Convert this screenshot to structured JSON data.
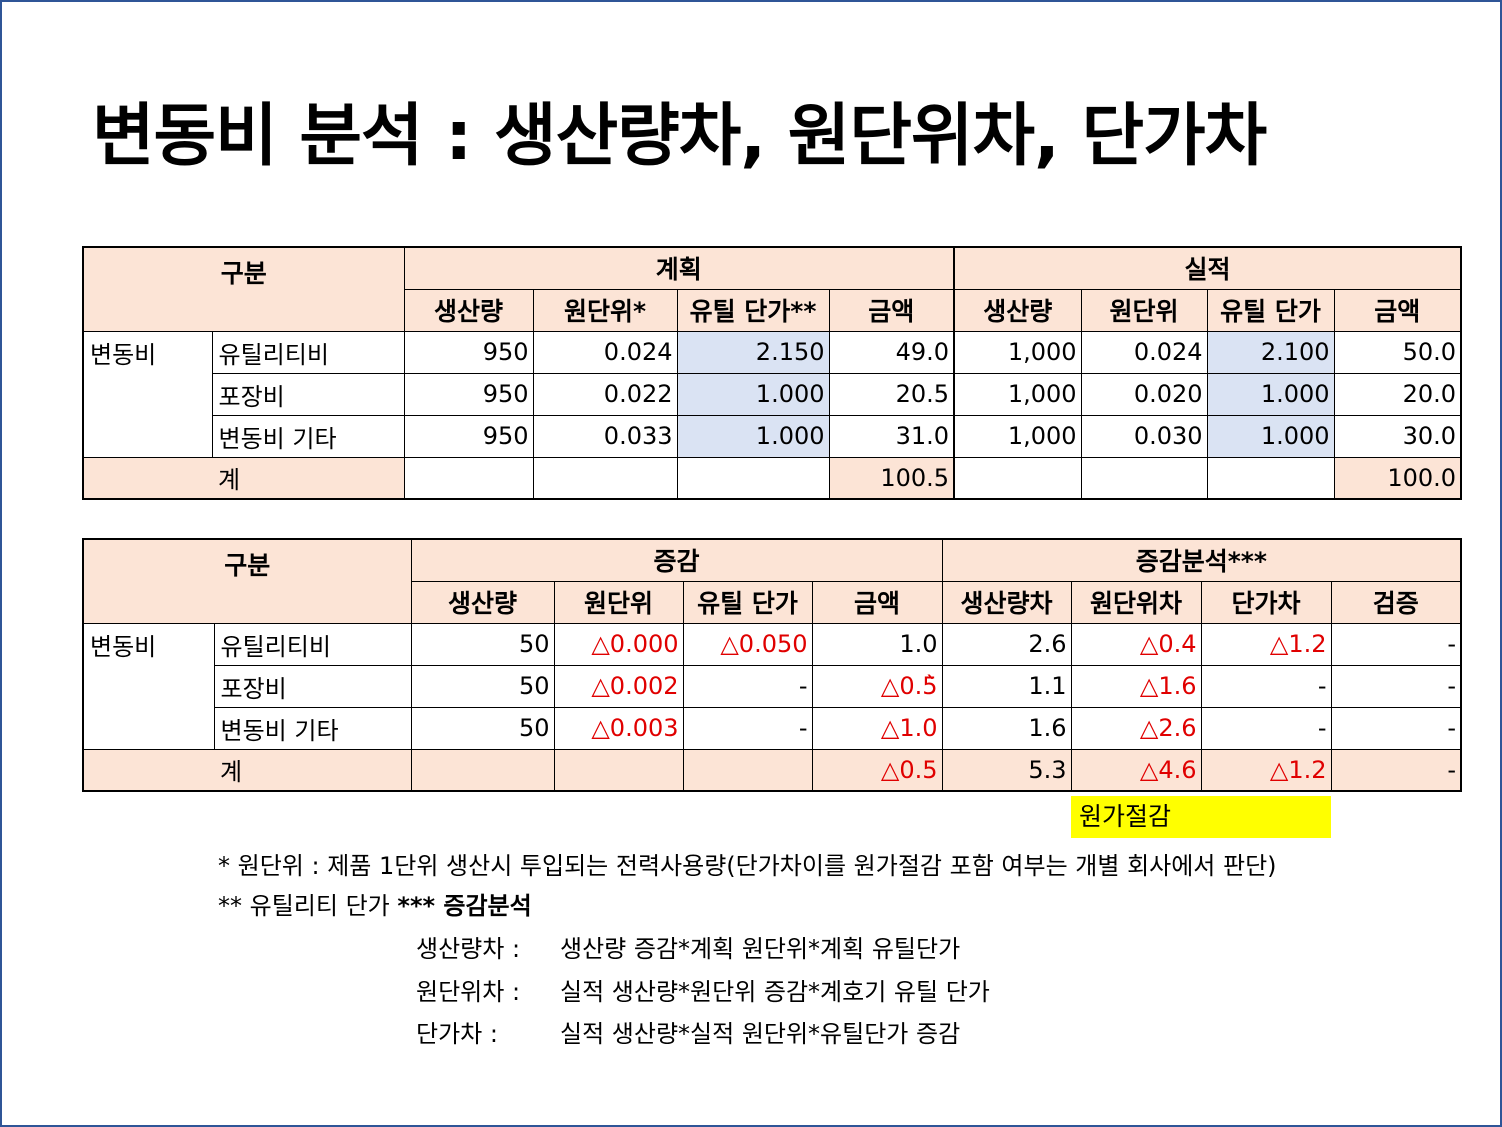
{
  "title": "변동비 분석 : 생산량차, 원단위차, 단가차",
  "table1": {
    "col_group": "구분",
    "plan_label": "계획",
    "actual_label": "실적",
    "plan_headers": [
      "생산량",
      "원단위*",
      "유틸 단가**",
      "금액"
    ],
    "actual_headers": [
      "생산량",
      "원단위",
      "유틸 단가",
      "금액"
    ],
    "group_label": "변동비",
    "rows": [
      {
        "name": "유틸리티비",
        "plan": [
          "950",
          "0.024",
          "2.150",
          "49.0"
        ],
        "actual": [
          "1,000",
          "0.024",
          "2.100",
          "50.0"
        ]
      },
      {
        "name": "포장비",
        "plan": [
          "950",
          "0.022",
          "1.000",
          "20.5"
        ],
        "actual": [
          "1,000",
          "0.020",
          "1.000",
          "20.0"
        ]
      },
      {
        "name": "변동비 기타",
        "plan": [
          "950",
          "0.033",
          "1.000",
          "31.0"
        ],
        "actual": [
          "1,000",
          "0.030",
          "1.000",
          "30.0"
        ]
      }
    ],
    "total_label": "계",
    "total_plan_amount": "100.5",
    "total_actual_amount": "100.0"
  },
  "table2": {
    "col_group": "구분",
    "change_label": "증감",
    "analysis_label": "증감분석***",
    "change_headers": [
      "생산량",
      "원단위",
      "유틸 단가",
      "금액"
    ],
    "analysis_headers": [
      "생산량차",
      "원단위차",
      "단가차",
      "검증"
    ],
    "group_label": "변동비",
    "rows": [
      {
        "name": "유틸리티비",
        "change": [
          "50",
          "△0.000",
          "△0.050",
          "1.0"
        ],
        "analysis": [
          "2.6",
          "△0.4",
          "△1.2",
          "-"
        ]
      },
      {
        "name": "포장비",
        "change": [
          "50",
          "△0.002",
          "-",
          "△0.5̀"
        ],
        "analysis": [
          "1.1",
          "△1.6",
          "-",
          "-"
        ]
      },
      {
        "name": "변동비 기타",
        "change": [
          "50",
          "△0.003",
          "-",
          "△1.0"
        ],
        "analysis": [
          "1.6",
          "△2.6",
          "-",
          "-"
        ]
      }
    ],
    "total_label": "계",
    "total_change_amount": "△0.5",
    "total_analysis": [
      "5.3",
      "△4.6",
      "△1.2",
      "-"
    ]
  },
  "highlight": "원가절감",
  "notes": {
    "note1": "* 원단위 : 제품 1단위 생산시 투입되는 전력사용량(단가차이를 원가절감 포함 여부는 개별 회사에서 판단)",
    "note2_prefix": "** 유틸리티 단가",
    "note2_bold": "*** 증감분석",
    "formulas": [
      {
        "label": "생산량차 :",
        "text": "생산량 증감*계획 원단위*계획 유틸단가"
      },
      {
        "label": "원단위차 :",
        "text": "실적 생산량*원단위 증감*계호기 유틸 단가"
      },
      {
        "label": "단가차 :",
        "text": "실적 생산량*실적 원단위*유틸단가 증감"
      }
    ]
  },
  "colors": {
    "header_bg": "#fce4d6",
    "unit_price_bg": "#dae3f3",
    "negative": "#e00000",
    "highlight": "#ffff00",
    "frame": "#2f5597"
  }
}
